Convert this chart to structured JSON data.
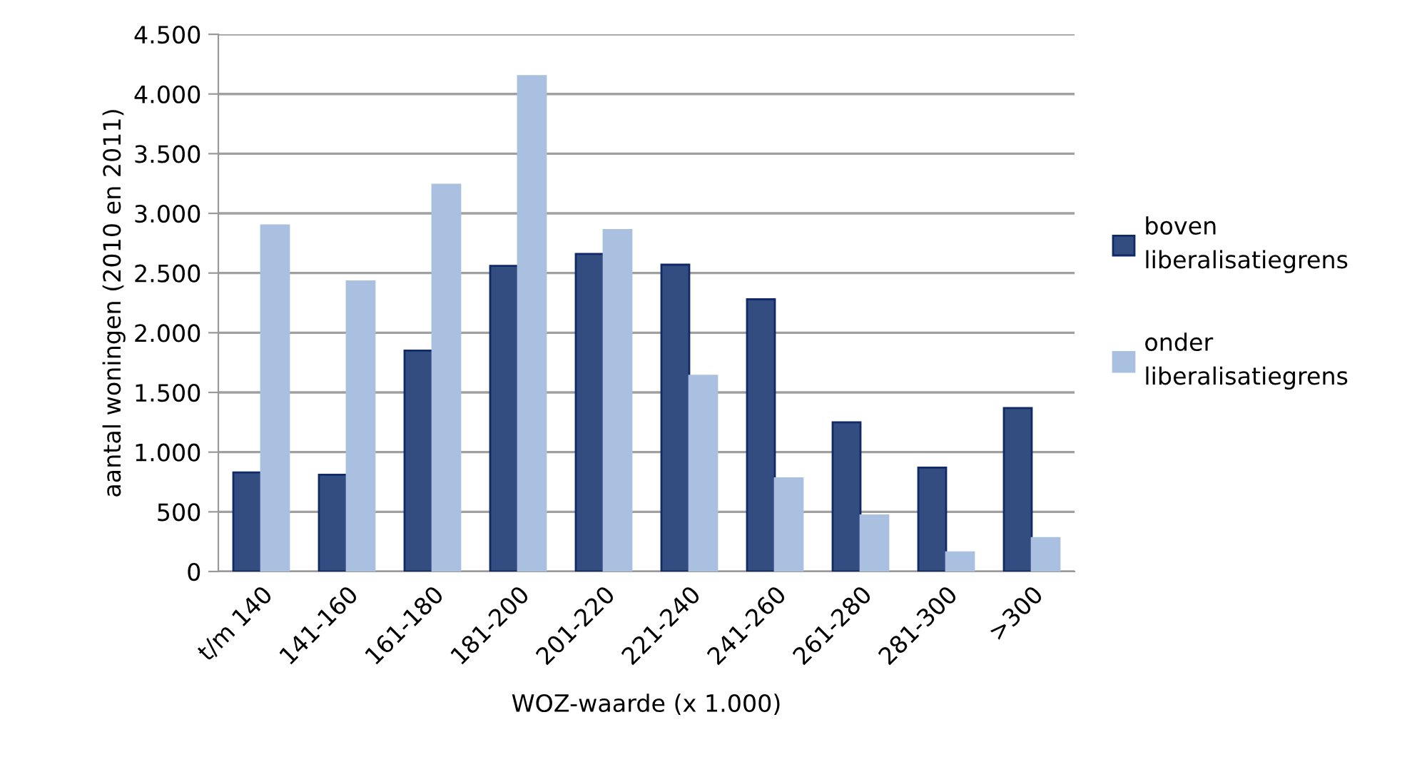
{
  "chart_data": {
    "type": "bar",
    "xlabel": "WOZ-waarde (x 1.000)",
    "ylabel": "aantal woningen (2010 en 2011)",
    "categories": [
      "t/m 140",
      "141-160",
      "161-180",
      "181-200",
      "201-220",
      "221-240",
      "241-260",
      "261-280",
      "281-300",
      ">300"
    ],
    "series": [
      {
        "name": "boven\nliberalisatiegrens",
        "color": "#334d80",
        "values": [
          830,
          810,
          1850,
          2560,
          2660,
          2570,
          2280,
          1250,
          870,
          1370
        ]
      },
      {
        "name": "onder\nliberalisatiegrens",
        "color": "#a9c0e0",
        "values": [
          2900,
          2430,
          3240,
          4150,
          2860,
          1640,
          780,
          470,
          160,
          280
        ]
      }
    ],
    "ylim": [
      0,
      4500
    ],
    "yticks": [
      {
        "value": 0,
        "label": "0"
      },
      {
        "value": 500,
        "label": "500"
      },
      {
        "value": 1000,
        "label": "1.000"
      },
      {
        "value": 1500,
        "label": "1.500"
      },
      {
        "value": 2000,
        "label": "2.000"
      },
      {
        "value": 2500,
        "label": "2.500"
      },
      {
        "value": 3000,
        "label": "3.000"
      },
      {
        "value": 3500,
        "label": "3.500"
      },
      {
        "value": 4000,
        "label": "4.000"
      },
      {
        "value": 4500,
        "label": "4.500"
      }
    ],
    "grid": "y",
    "legend": "right"
  }
}
